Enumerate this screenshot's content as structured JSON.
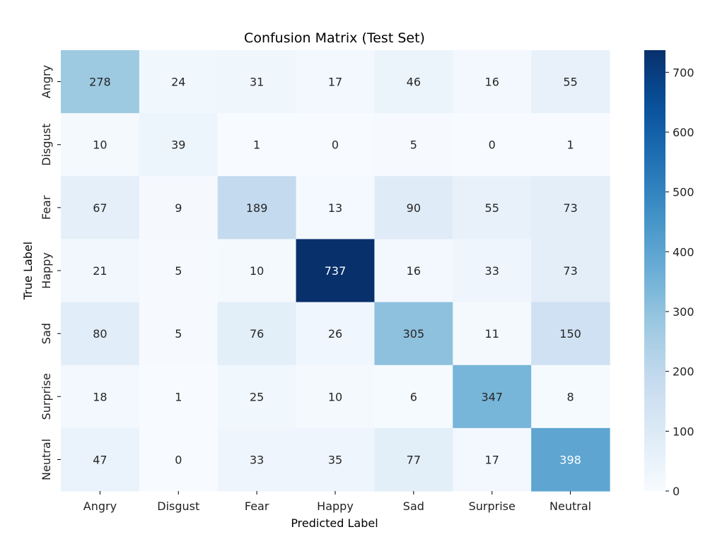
{
  "chart_data": {
    "type": "heatmap",
    "title": "Confusion Matrix (Test Set)",
    "xlabel": "Predicted Label",
    "ylabel": "True Label",
    "x_categories": [
      "Angry",
      "Disgust",
      "Fear",
      "Happy",
      "Sad",
      "Surprise",
      "Neutral"
    ],
    "y_categories": [
      "Angry",
      "Disgust",
      "Fear",
      "Happy",
      "Sad",
      "Surprise",
      "Neutral"
    ],
    "values": [
      [
        278,
        24,
        31,
        17,
        46,
        16,
        55
      ],
      [
        10,
        39,
        1,
        0,
        5,
        0,
        1
      ],
      [
        67,
        9,
        189,
        13,
        90,
        55,
        73
      ],
      [
        21,
        5,
        10,
        737,
        16,
        33,
        73
      ],
      [
        80,
        5,
        76,
        26,
        305,
        11,
        150
      ],
      [
        18,
        1,
        25,
        10,
        6,
        347,
        8
      ],
      [
        47,
        0,
        33,
        35,
        77,
        17,
        398
      ]
    ],
    "colorscale": "Blues",
    "vmin": 0,
    "vmax": 737,
    "colorbar_ticks": [
      "0",
      "100",
      "200",
      "300",
      "400",
      "500",
      "600",
      "700"
    ]
  }
}
